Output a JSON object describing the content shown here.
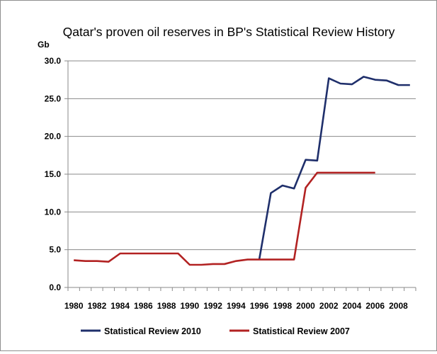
{
  "chart_data": {
    "type": "line",
    "title": "Qatar's proven oil reserves in BP's Statistical Review History",
    "ylabel": "Gb",
    "xlabel": "",
    "ylim": [
      0,
      30
    ],
    "yticks": [
      "0.0",
      "5.0",
      "10.0",
      "15.0",
      "20.0",
      "25.0",
      "30.0"
    ],
    "xlim": [
      1980,
      2009
    ],
    "xticks": [
      "1980",
      "1982",
      "1984",
      "1986",
      "1988",
      "1990",
      "1992",
      "1994",
      "1996",
      "1998",
      "2000",
      "2002",
      "2004",
      "2006",
      "2008"
    ],
    "grid": "horizontal",
    "legend_position": "bottom",
    "series": [
      {
        "name": "Statistical Review 2010",
        "color": "#1f2f6b",
        "x": [
          1996,
          1997,
          1998,
          1999,
          2000,
          2001,
          2002,
          2003,
          2004,
          2005,
          2006,
          2007,
          2008,
          2009
        ],
        "values": [
          3.7,
          12.5,
          13.5,
          13.1,
          16.9,
          16.8,
          27.7,
          27.0,
          26.9,
          27.9,
          27.5,
          27.4,
          26.8,
          26.8
        ]
      },
      {
        "name": "Statistical Review 2007",
        "color": "#b22222",
        "x": [
          1980,
          1981,
          1982,
          1983,
          1984,
          1985,
          1986,
          1987,
          1988,
          1989,
          1990,
          1991,
          1992,
          1993,
          1994,
          1995,
          1996,
          1997,
          1998,
          1999,
          2000,
          2001,
          2002,
          2003,
          2004,
          2005,
          2006
        ],
        "values": [
          3.6,
          3.5,
          3.5,
          3.4,
          4.5,
          4.5,
          4.5,
          4.5,
          4.5,
          4.5,
          3.0,
          3.0,
          3.1,
          3.1,
          3.5,
          3.7,
          3.7,
          3.7,
          3.7,
          3.7,
          13.2,
          15.2,
          15.2,
          15.2,
          15.2,
          15.2,
          15.2
        ]
      }
    ]
  }
}
